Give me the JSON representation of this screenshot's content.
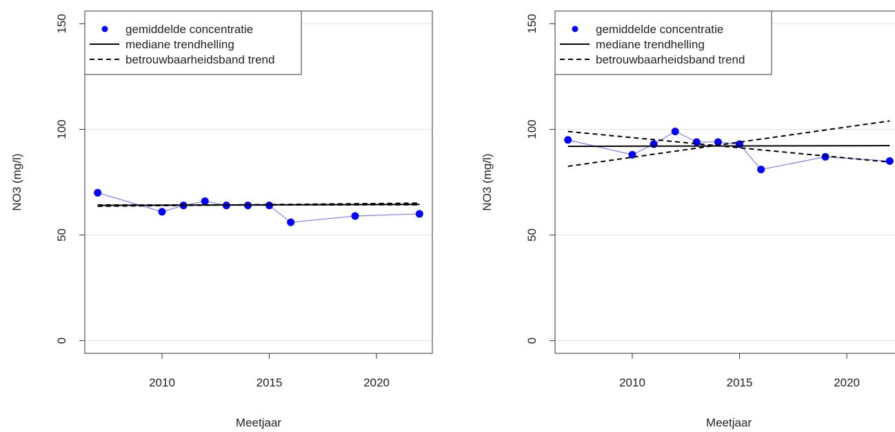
{
  "chart_data": [
    {
      "type": "scatter",
      "x_label": "Meetjaar",
      "y_label": "NO3 (mg/l)",
      "xlim": [
        2006.4,
        2022.6
      ],
      "ylim": [
        -6,
        156
      ],
      "xticks": [
        2010,
        2015,
        2020
      ],
      "yticks": [
        0,
        50,
        100,
        150
      ],
      "grid": true,
      "legend": "topleft",
      "series": [
        {
          "name": "gemiddelde concentratie",
          "color": "#0000ff",
          "style": "points",
          "x": [
            2007,
            2010,
            2011,
            2012,
            2013,
            2014,
            2015,
            2016,
            2019,
            2022
          ],
          "values": [
            70,
            61,
            64,
            66,
            64,
            64,
            64,
            56,
            59,
            60
          ]
        },
        {
          "name": "mediane trendhelling",
          "color": "#000000",
          "style": "solid",
          "x": [
            2007,
            2022
          ],
          "lines": [
            [
              64,
              64.5
            ]
          ]
        },
        {
          "name": "betrouwbaarheidsband trend",
          "color": "#000000",
          "style": "dashed",
          "x": [
            2007,
            2022
          ],
          "lines": [
            [
              63.6,
              65.1
            ],
            [
              64.2,
              64.3
            ]
          ]
        }
      ]
    },
    {
      "type": "scatter",
      "x_label": "Meetjaar",
      "y_label": "NO3 (mg/l)",
      "xlim": [
        2006.4,
        2022.6
      ],
      "ylim": [
        -6,
        156
      ],
      "xticks": [
        2010,
        2015,
        2020
      ],
      "yticks": [
        0,
        50,
        100,
        150
      ],
      "grid": true,
      "legend": "topleft",
      "series": [
        {
          "name": "gemiddelde concentratie",
          "color": "#0000ff",
          "style": "points",
          "x": [
            2007,
            2010,
            2011,
            2012,
            2013,
            2014,
            2015,
            2016,
            2019,
            2022
          ],
          "values": [
            95,
            88,
            93,
            99,
            94,
            94,
            93,
            81,
            87,
            85
          ]
        },
        {
          "name": "mediane trendhelling",
          "color": "#000000",
          "style": "solid",
          "x": [
            2007,
            2022
          ],
          "lines": [
            [
              92,
              92.3
            ]
          ]
        },
        {
          "name": "betrouwbaarheidsband trend",
          "color": "#000000",
          "style": "dashed",
          "x": [
            2007,
            2022
          ],
          "lines": [
            [
              99,
              84.5
            ],
            [
              82.5,
              104
            ]
          ]
        }
      ]
    }
  ]
}
